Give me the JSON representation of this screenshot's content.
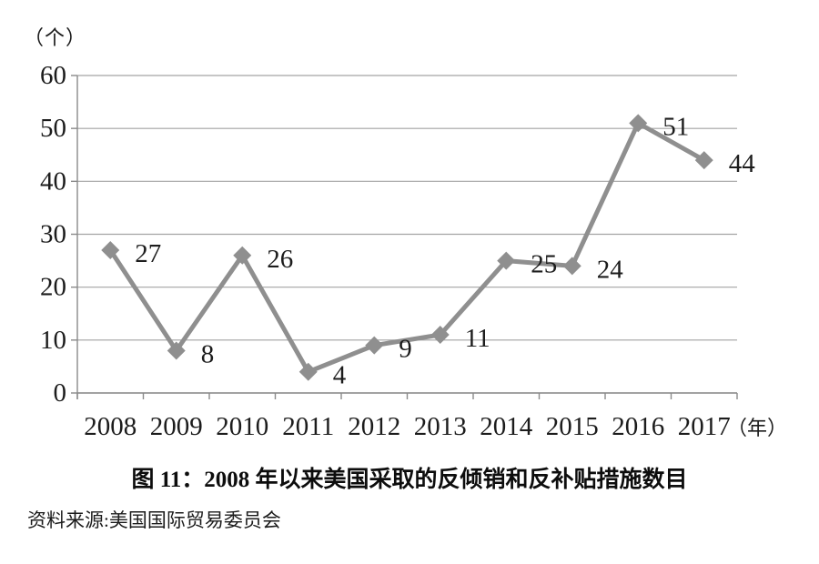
{
  "chart_data": {
    "type": "line",
    "title": "图 11：2008 年以来美国采取的反倾销和反补贴措施数目",
    "categories": [
      "2008",
      "2009",
      "2010",
      "2011",
      "2012",
      "2013",
      "2014",
      "2015",
      "2016",
      "2017"
    ],
    "values": [
      27,
      8,
      26,
      4,
      9,
      11,
      25,
      24,
      51,
      44
    ],
    "xlabel": "（年）",
    "ylabel": "（个）",
    "ylim": [
      0,
      60
    ],
    "ytick_step": 10,
    "yticks": [
      0,
      10,
      20,
      30,
      40,
      50,
      60
    ],
    "grid": true,
    "legend": false,
    "marker": "diamond",
    "point_labels_visible": true,
    "line_color": "#8f8f8f",
    "grid_color": "#a3a3a3",
    "axis_color": "#8a8a8a",
    "text_color": "#1c1c1c"
  },
  "source_note": "资料来源:美国国际贸易委员会"
}
